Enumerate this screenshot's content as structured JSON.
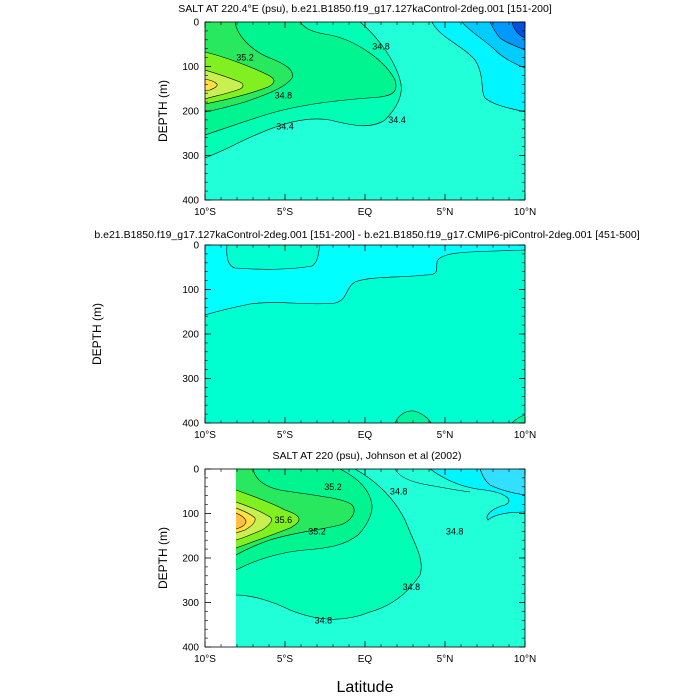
{
  "figure": {
    "xlabel": "Latitude",
    "ylabel": "DEPTH (m)",
    "x_ticks": [
      "10°S",
      "5°S",
      "EQ",
      "5°N",
      "10°N"
    ],
    "y_ticks": [
      "0",
      "100",
      "200",
      "300",
      "400"
    ]
  },
  "colors": {
    "s33_0": "#33dfff",
    "s33_8": "#00f5ff",
    "s34_0": "#20ffd8",
    "s34_4": "#00ffb4",
    "s34_8": "#00f590",
    "s35_0": "#28e860",
    "s35_2": "#80f020",
    "s35_4": "#c8f050",
    "s35_6": "#ffe040",
    "s35_8": "#ffc040",
    "fresh1": "#00ccff",
    "fresh2": "#0099ff",
    "fresh3": "#0050e0",
    "diff_pos": "#00ffd0",
    "diff_neg": "#00ffff",
    "diff_hi": "#00f5a0"
  },
  "chart_data": [
    {
      "type": "contour",
      "title": "SALT AT 220.4°E (psu), b.e21.B1850.f19_g17.127kaControl-2deg.001 [151-200]",
      "xlabel": "",
      "ylabel": "DEPTH (m)",
      "x_range": [
        -10,
        10
      ],
      "y_range": [
        400,
        0
      ],
      "x_ticks": [
        "10°S",
        "5°S",
        "EQ",
        "5°N",
        "10°N"
      ],
      "y_ticks": [
        "0",
        "100",
        "200",
        "300",
        "400"
      ],
      "contour_labels": [
        {
          "text": "35.2",
          "x": -7.5,
          "y": 80
        },
        {
          "text": "34.8",
          "x": -5.1,
          "y": 165
        },
        {
          "text": "34.4",
          "x": -5.0,
          "y": 235
        },
        {
          "text": "34.8",
          "x": 1.0,
          "y": 55
        },
        {
          "text": "34.4",
          "x": 2.0,
          "y": 220
        }
      ]
    },
    {
      "type": "contour",
      "title": "b.e21.B1850.f19_g17.127kaControl-2deg.001 [151-200] - b.e21.B1850.f19_g17.CMIP6-piControl-2deg.001 [451-500]",
      "xlabel": "",
      "ylabel": "DEPTH (m)",
      "x_range": [
        -10,
        10
      ],
      "y_range": [
        400,
        0
      ],
      "x_ticks": [
        "10°S",
        "5°S",
        "EQ",
        "5°N",
        "10°N"
      ],
      "y_ticks": [
        "0",
        "100",
        "200",
        "300",
        "400"
      ],
      "contour_labels": []
    },
    {
      "type": "contour",
      "title": "SALT AT 220 (psu), Johnson et al (2002)",
      "xlabel": "Latitude",
      "ylabel": "DEPTH (m)",
      "x_range": [
        -10,
        10
      ],
      "y_range": [
        400,
        0
      ],
      "x_ticks": [
        "10°S",
        "5°S",
        "EQ",
        "5°N",
        "10°N"
      ],
      "y_ticks": [
        "0",
        "100",
        "200",
        "300",
        "400"
      ],
      "contour_labels": [
        {
          "text": "35.2",
          "x": -2.0,
          "y": 40
        },
        {
          "text": "35.6",
          "x": -5.1,
          "y": 115
        },
        {
          "text": "35.2",
          "x": -3.0,
          "y": 140
        },
        {
          "text": "34.8",
          "x": 2.1,
          "y": 50
        },
        {
          "text": "34.8",
          "x": 5.6,
          "y": 140
        },
        {
          "text": "34.8",
          "x": 2.9,
          "y": 265
        },
        {
          "text": "34.8",
          "x": -2.6,
          "y": 340
        }
      ]
    }
  ]
}
